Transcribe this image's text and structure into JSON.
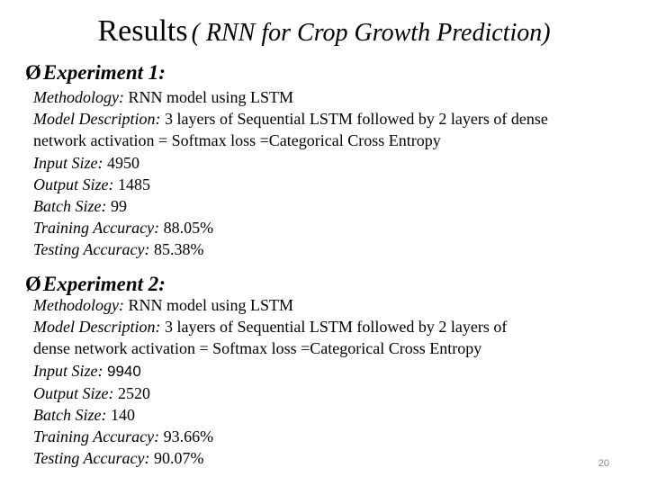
{
  "slide": {
    "title_main": "Results",
    "title_sub": "( RNN for Crop Growth Prediction)",
    "page_number": "20"
  },
  "experiments": [
    {
      "heading": "Experiment 1:",
      "methodology_label": "Methodology:",
      "methodology_value": "RNN model using LSTM",
      "model_desc_label": "Model Description:",
      "model_desc_line1": "3 layers of Sequential LSTM followed by 2 layers of dense",
      "model_desc_line2": "network activation = Softmax loss =Categorical Cross Entropy",
      "input_size_label": "Input Size:",
      "input_size_value": "4950",
      "output_size_label": "Output Size:",
      "output_size_value": "1485",
      "batch_size_label": "Batch Size:",
      "batch_size_value": "99",
      "training_acc_label": "Training Accuracy:",
      "training_acc_value": "88.05%",
      "testing_acc_label": "Testing Accuracy:",
      "testing_acc_value": "85.38%"
    },
    {
      "heading": "Experiment 2:",
      "methodology_label": "Methodology:",
      "methodology_value": "RNN model using LSTM",
      "model_desc_label": "Model Description:",
      "model_desc_line1": "3 layers of Sequential LSTM followed by 2 layers of",
      "model_desc_line2": "dense network activation = Softmax loss =Categorical Cross Entropy",
      "input_size_label": "Input Size:",
      "input_size_value": "9940",
      "output_size_label": "Output Size:",
      "output_size_value": "2520",
      "batch_size_label": "Batch Size:",
      "batch_size_value": "140",
      "training_acc_label": "Training Accuracy:",
      "training_acc_value": "93.66%",
      "testing_acc_label": "Testing Accuracy:",
      "testing_acc_value": "90.07%"
    }
  ]
}
